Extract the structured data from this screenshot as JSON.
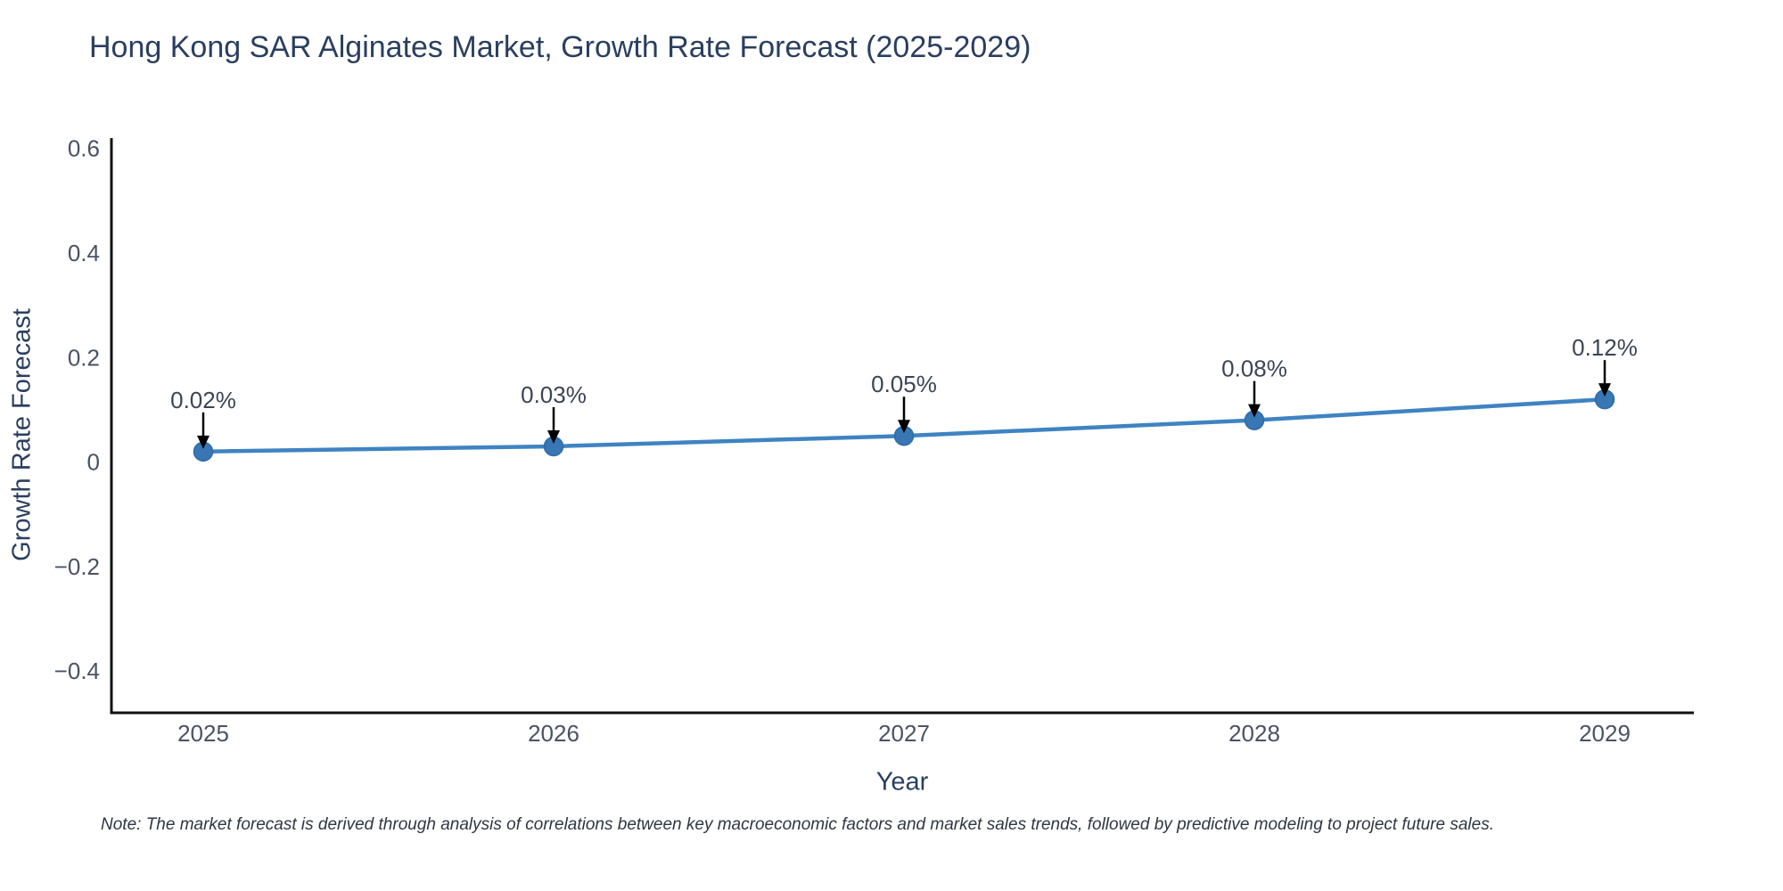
{
  "chart_data": {
    "type": "line",
    "title": "Hong Kong SAR Alginates Market, Growth Rate Forecast (2025-2029)",
    "xlabel": "Year",
    "ylabel": "Growth Rate Forecast",
    "x": [
      "2025",
      "2026",
      "2027",
      "2028",
      "2029"
    ],
    "y": [
      0.02,
      0.03,
      0.05,
      0.08,
      0.12
    ],
    "point_labels": [
      "0.02%",
      "0.03%",
      "0.05%",
      "0.08%",
      "0.12%"
    ],
    "ytick_values": [
      0.6,
      0.4,
      0.2,
      0,
      -0.2,
      -0.4
    ],
    "ytick_labels": [
      "0.6",
      "0.4",
      "0.2",
      "0",
      "−0.2",
      "−0.4"
    ],
    "ylim": [
      -0.48,
      0.62
    ],
    "grid": false,
    "legend_position": "none",
    "line_color": "#3F83C2",
    "marker_color": "#3877B4",
    "marker_edge_color": "#2F6BA8",
    "axis_color": "#111111",
    "annotation_arrow_color": "#000000",
    "note": "Note: The market forecast is derived through analysis of correlations between key macroeconomic factors and market sales trends, followed by predictive modeling to project future sales."
  }
}
